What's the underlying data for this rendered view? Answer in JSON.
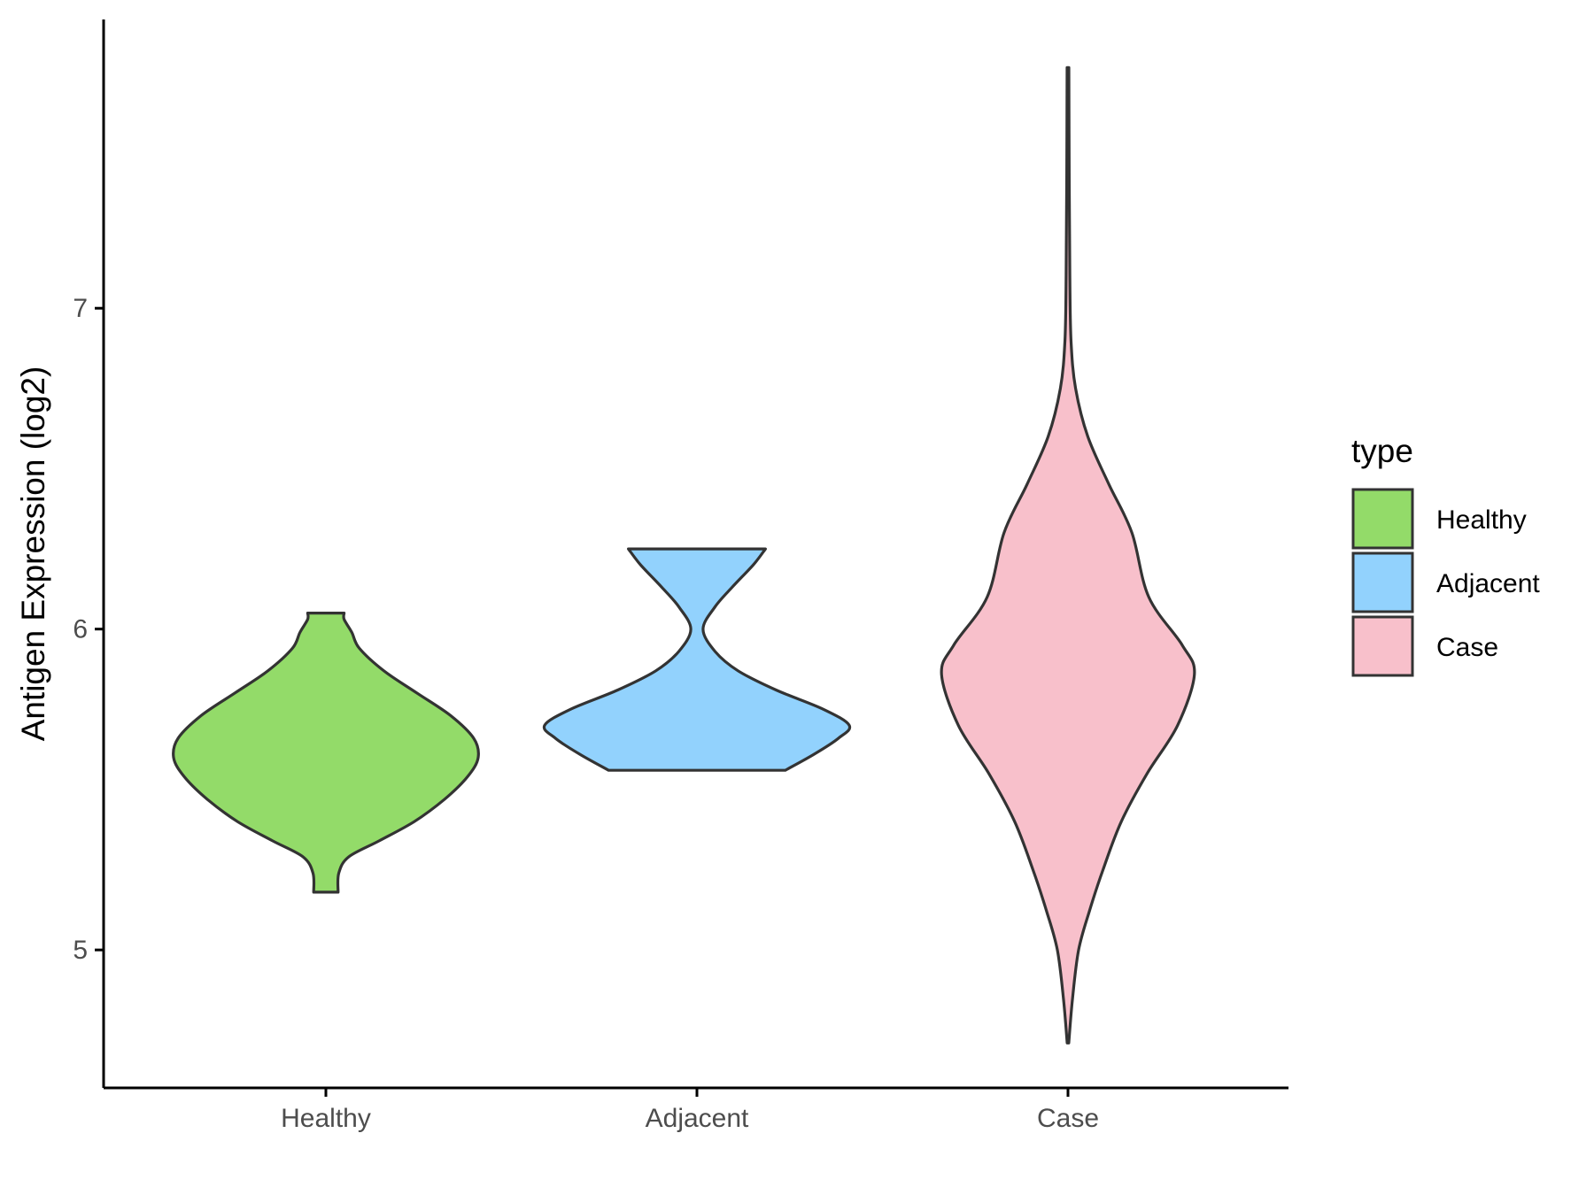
{
  "chart_data": {
    "type": "violin",
    "ylabel": "Antigen Expression (log2)",
    "xlabel": "",
    "categories": [
      "Healthy",
      "Adjacent",
      "Case"
    ],
    "yticks": [
      5,
      6,
      7
    ],
    "ylim": [
      4.57,
      7.9
    ],
    "grid": false,
    "legend": {
      "title": "type",
      "position": "right",
      "entries": [
        {
          "label": "Healthy",
          "color": "#93DB69"
        },
        {
          "label": "Adjacent",
          "color": "#92D2FD"
        },
        {
          "label": "Case",
          "color": "#F8C0CB"
        }
      ]
    },
    "series": [
      {
        "category": "Healthy",
        "color": "#93DB69",
        "min": 5.18,
        "max": 6.05,
        "density": [
          [
            5.18,
            0.08
          ],
          [
            5.24,
            0.085
          ],
          [
            5.29,
            0.15
          ],
          [
            5.34,
            0.35
          ],
          [
            5.4,
            0.58
          ],
          [
            5.47,
            0.78
          ],
          [
            5.54,
            0.93
          ],
          [
            5.6,
            1.0
          ],
          [
            5.66,
            0.97
          ],
          [
            5.73,
            0.82
          ],
          [
            5.8,
            0.6
          ],
          [
            5.87,
            0.38
          ],
          [
            5.94,
            0.22
          ],
          [
            5.99,
            0.17
          ],
          [
            6.03,
            0.12
          ],
          [
            6.05,
            0.12
          ]
        ]
      },
      {
        "category": "Adjacent",
        "color": "#92D2FD",
        "min": 5.56,
        "max": 6.25,
        "density": [
          [
            5.56,
            0.58
          ],
          [
            5.61,
            0.77
          ],
          [
            5.66,
            0.93
          ],
          [
            5.7,
            1.0
          ],
          [
            5.75,
            0.83
          ],
          [
            5.81,
            0.52
          ],
          [
            5.87,
            0.27
          ],
          [
            5.93,
            0.12
          ],
          [
            6.0,
            0.04
          ],
          [
            6.07,
            0.12
          ],
          [
            6.13,
            0.23
          ],
          [
            6.2,
            0.37
          ],
          [
            6.25,
            0.45
          ]
        ]
      },
      {
        "category": "Case",
        "color": "#F8C0CB",
        "min": 4.71,
        "max": 7.75,
        "density": [
          [
            4.71,
            0.005
          ],
          [
            4.85,
            0.03
          ],
          [
            5.0,
            0.07
          ],
          [
            5.12,
            0.14
          ],
          [
            5.25,
            0.23
          ],
          [
            5.4,
            0.35
          ],
          [
            5.55,
            0.52
          ],
          [
            5.7,
            0.72
          ],
          [
            5.86,
            0.83
          ],
          [
            5.95,
            0.75
          ],
          [
            6.1,
            0.53
          ],
          [
            6.3,
            0.42
          ],
          [
            6.45,
            0.27
          ],
          [
            6.6,
            0.13
          ],
          [
            6.75,
            0.05
          ],
          [
            6.9,
            0.02
          ],
          [
            7.1,
            0.012
          ],
          [
            7.4,
            0.008
          ],
          [
            7.75,
            0.006
          ]
        ]
      }
    ]
  }
}
